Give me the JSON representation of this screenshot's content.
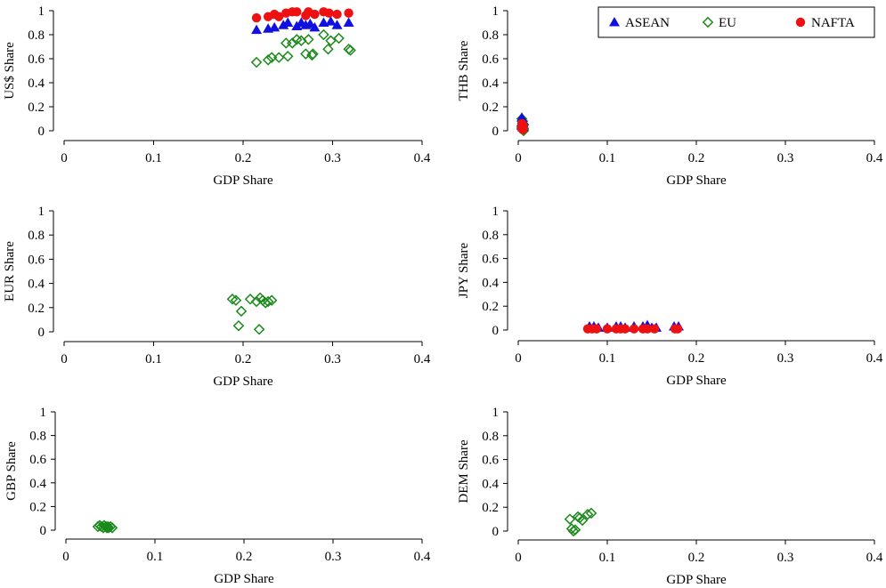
{
  "colors": {
    "ASEAN": "#1010e0",
    "EU": "#1a8a1a",
    "NAFTA": "#ee1111"
  },
  "legend": {
    "placement": "top-right of THB panel",
    "entries": [
      {
        "name": "ASEAN",
        "marker": "triangle",
        "color": "#1010e0"
      },
      {
        "name": "EU",
        "marker": "diamond-hollow",
        "color": "#1a8a1a"
      },
      {
        "name": "NAFTA",
        "marker": "circle",
        "color": "#ee1111"
      }
    ]
  },
  "chart_data": [
    {
      "type": "scatter",
      "xlabel": "GDP Share",
      "ylabel": "US$ Share",
      "xlim": [
        0,
        0.4
      ],
      "ylim": [
        0,
        1
      ],
      "xticks": [
        "0",
        "0.1",
        "0.2",
        "0.3",
        "0.4"
      ],
      "yticks": [
        "0",
        "0.2",
        "0.4",
        "0.6",
        "0.8",
        "1"
      ],
      "grid": false,
      "series": [
        {
          "name": "ASEAN",
          "marker": "triangle",
          "points": [
            [
              0.215,
              0.84
            ],
            [
              0.228,
              0.85
            ],
            [
              0.235,
              0.86
            ],
            [
              0.245,
              0.88
            ],
            [
              0.25,
              0.9
            ],
            [
              0.26,
              0.87
            ],
            [
              0.265,
              0.9
            ],
            [
              0.27,
              0.88
            ],
            [
              0.275,
              0.89
            ],
            [
              0.28,
              0.86
            ],
            [
              0.29,
              0.9
            ],
            [
              0.298,
              0.91
            ],
            [
              0.305,
              0.88
            ],
            [
              0.318,
              0.9
            ]
          ]
        },
        {
          "name": "EU",
          "marker": "diamond-hollow",
          "points": [
            [
              0.215,
              0.57
            ],
            [
              0.228,
              0.59
            ],
            [
              0.232,
              0.61
            ],
            [
              0.24,
              0.61
            ],
            [
              0.248,
              0.73
            ],
            [
              0.25,
              0.62
            ],
            [
              0.255,
              0.73
            ],
            [
              0.26,
              0.76
            ],
            [
              0.265,
              0.75
            ],
            [
              0.27,
              0.64
            ],
            [
              0.273,
              0.76
            ],
            [
              0.277,
              0.63
            ],
            [
              0.278,
              0.64
            ],
            [
              0.29,
              0.8
            ],
            [
              0.295,
              0.68
            ],
            [
              0.298,
              0.75
            ],
            [
              0.307,
              0.77
            ],
            [
              0.318,
              0.68
            ],
            [
              0.32,
              0.67
            ]
          ]
        },
        {
          "name": "NAFTA",
          "marker": "circle",
          "points": [
            [
              0.215,
              0.94
            ],
            [
              0.228,
              0.95
            ],
            [
              0.235,
              0.97
            ],
            [
              0.24,
              0.95
            ],
            [
              0.248,
              0.98
            ],
            [
              0.255,
              0.99
            ],
            [
              0.26,
              0.99
            ],
            [
              0.27,
              0.96
            ],
            [
              0.273,
              0.99
            ],
            [
              0.28,
              0.97
            ],
            [
              0.29,
              0.99
            ],
            [
              0.296,
              0.98
            ],
            [
              0.305,
              0.97
            ],
            [
              0.318,
              0.98
            ]
          ]
        }
      ]
    },
    {
      "type": "scatter",
      "xlabel": "GDP Share",
      "ylabel": "THB Share",
      "xlim": [
        0,
        0.4
      ],
      "ylim": [
        0,
        1
      ],
      "xticks": [
        "0",
        "0.1",
        "0.2",
        "0.3",
        "0.4"
      ],
      "yticks": [
        "0",
        "0.2",
        "0.4",
        "0.6",
        "0.8",
        "1"
      ],
      "grid": false,
      "series": [
        {
          "name": "ASEAN",
          "marker": "triangle",
          "points": [
            [
              0.004,
              0.11
            ],
            [
              0.005,
              0.09
            ],
            [
              0.006,
              0.08
            ],
            [
              0.004,
              0.07
            ],
            [
              0.005,
              0.06
            ],
            [
              0.006,
              0.05
            ],
            [
              0.004,
              0.04
            ],
            [
              0.005,
              0.03
            ]
          ]
        },
        {
          "name": "EU",
          "marker": "diamond-hollow",
          "points": [
            [
              0.004,
              0.1
            ],
            [
              0.005,
              0.08
            ],
            [
              0.006,
              0.05
            ],
            [
              0.004,
              0.03
            ],
            [
              0.005,
              0.01
            ],
            [
              0.006,
              0.0
            ],
            [
              0.004,
              0.02
            ],
            [
              0.006,
              0.01
            ]
          ]
        },
        {
          "name": "NAFTA",
          "marker": "circle",
          "points": [
            [
              0.004,
              0.06
            ],
            [
              0.005,
              0.04
            ],
            [
              0.004,
              0.02
            ],
            [
              0.005,
              0.01
            ],
            [
              0.006,
              0.03
            ],
            [
              0.005,
              0.05
            ]
          ]
        }
      ]
    },
    {
      "type": "scatter",
      "xlabel": "GDP Share",
      "ylabel": "EUR Share",
      "xlim": [
        0,
        0.4
      ],
      "ylim": [
        0,
        1
      ],
      "xticks": [
        "0",
        "0.1",
        "0.2",
        "0.3",
        "0.4"
      ],
      "yticks": [
        "0",
        "0.2",
        "0.4",
        "0.6",
        "0.8",
        "1"
      ],
      "grid": false,
      "series": [
        {
          "name": "EU",
          "marker": "diamond-hollow",
          "points": [
            [
              0.188,
              0.27
            ],
            [
              0.192,
              0.26
            ],
            [
              0.195,
              0.05
            ],
            [
              0.198,
              0.17
            ],
            [
              0.208,
              0.27
            ],
            [
              0.215,
              0.25
            ],
            [
              0.218,
              0.02
            ],
            [
              0.219,
              0.28
            ],
            [
              0.222,
              0.26
            ],
            [
              0.225,
              0.24
            ],
            [
              0.228,
              0.25
            ],
            [
              0.232,
              0.26
            ]
          ]
        }
      ]
    },
    {
      "type": "scatter",
      "xlabel": "GDP Share",
      "ylabel": "JPY Share",
      "xlim": [
        0,
        0.4
      ],
      "ylim": [
        0,
        1
      ],
      "xticks": [
        "0",
        "0.1",
        "0.2",
        "0.3",
        "0.4"
      ],
      "yticks": [
        "0",
        "0.2",
        "0.4",
        "0.6",
        "0.8",
        "1"
      ],
      "grid": false,
      "series": [
        {
          "name": "ASEAN",
          "marker": "triangle",
          "points": [
            [
              0.08,
              0.03
            ],
            [
              0.085,
              0.03
            ],
            [
              0.09,
              0.02
            ],
            [
              0.1,
              0.02
            ],
            [
              0.11,
              0.03
            ],
            [
              0.115,
              0.03
            ],
            [
              0.12,
              0.02
            ],
            [
              0.13,
              0.03
            ],
            [
              0.14,
              0.03
            ],
            [
              0.145,
              0.04
            ],
            [
              0.15,
              0.02
            ],
            [
              0.155,
              0.02
            ],
            [
              0.175,
              0.03
            ],
            [
              0.18,
              0.03
            ]
          ]
        },
        {
          "name": "NAFTA",
          "marker": "circle",
          "points": [
            [
              0.078,
              0.01
            ],
            [
              0.083,
              0.01
            ],
            [
              0.088,
              0.01
            ],
            [
              0.1,
              0.01
            ],
            [
              0.11,
              0.01
            ],
            [
              0.115,
              0.01
            ],
            [
              0.12,
              0.01
            ],
            [
              0.13,
              0.01
            ],
            [
              0.14,
              0.01
            ],
            [
              0.145,
              0.01
            ],
            [
              0.153,
              0.01
            ],
            [
              0.176,
              0.01
            ],
            [
              0.179,
              0.01
            ]
          ]
        }
      ]
    },
    {
      "type": "scatter",
      "xlabel": "GDP Share",
      "ylabel": "GBP Share",
      "xlim": [
        0,
        0.4
      ],
      "ylim": [
        0,
        1
      ],
      "xticks": [
        "0",
        "0.1",
        "0.2",
        "0.3",
        "0.4"
      ],
      "yticks": [
        "0",
        "0.2",
        "0.4",
        "0.6",
        "0.8",
        "1"
      ],
      "grid": false,
      "series": [
        {
          "name": "EU",
          "marker": "diamond-hollow",
          "points": [
            [
              0.036,
              0.03
            ],
            [
              0.038,
              0.04
            ],
            [
              0.04,
              0.03
            ],
            [
              0.042,
              0.02
            ],
            [
              0.043,
              0.04
            ],
            [
              0.045,
              0.03
            ],
            [
              0.046,
              0.02
            ],
            [
              0.047,
              0.03
            ],
            [
              0.048,
              0.02
            ],
            [
              0.05,
              0.03
            ],
            [
              0.052,
              0.02
            ]
          ]
        }
      ]
    },
    {
      "type": "scatter",
      "xlabel": "GDP Share",
      "ylabel": "DEM Share",
      "xlim": [
        0,
        0.4
      ],
      "ylim": [
        0,
        1
      ],
      "xticks": [
        "0",
        "0.1",
        "0.2",
        "0.3",
        "0.4"
      ],
      "yticks": [
        "0",
        "0.2",
        "0.4",
        "0.6",
        "0.8",
        "1"
      ],
      "grid": false,
      "series": [
        {
          "name": "EU",
          "marker": "diamond-hollow",
          "points": [
            [
              0.058,
              0.1
            ],
            [
              0.06,
              0.02
            ],
            [
              0.062,
              0.0
            ],
            [
              0.064,
              0.01
            ],
            [
              0.067,
              0.12
            ],
            [
              0.069,
              0.11
            ],
            [
              0.072,
              0.09
            ],
            [
              0.078,
              0.14
            ],
            [
              0.082,
              0.15
            ]
          ]
        }
      ]
    }
  ]
}
